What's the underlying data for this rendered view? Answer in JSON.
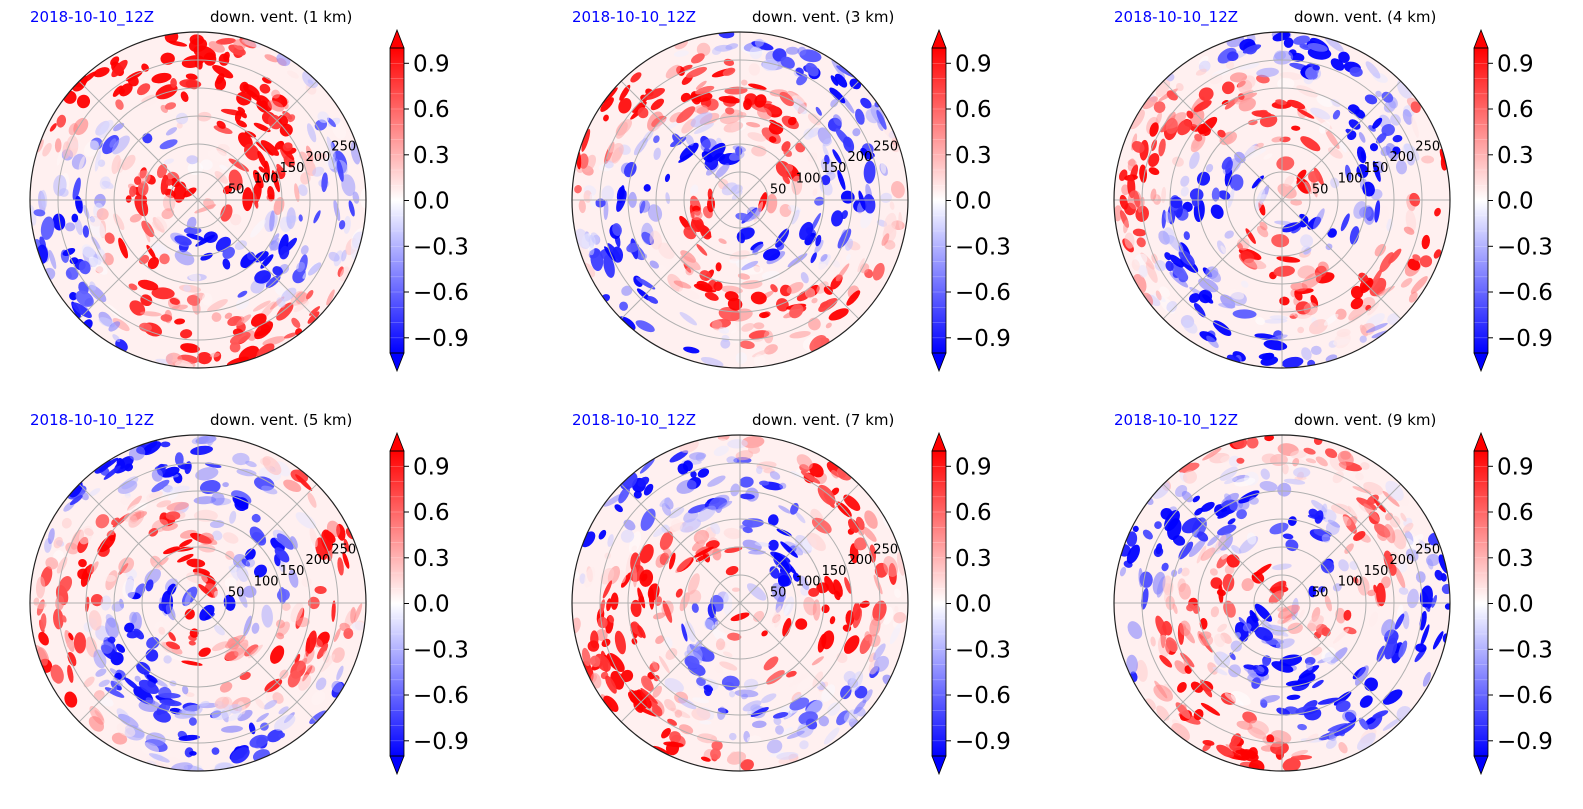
{
  "chart_data": [
    {
      "type": "heatmap",
      "date_label": "2018-10-10_12Z",
      "title": "down. vent. (1 km)",
      "projection": "polar",
      "radial_ticks": [
        "50",
        "100",
        "150",
        "200",
        "250"
      ],
      "colorbar": {
        "ticks": [
          "0.9",
          "0.6",
          "0.3",
          "0.0",
          "−0.3",
          "−0.6",
          "−0.9"
        ],
        "range": [
          -1,
          1
        ],
        "extend": "both",
        "cmap": "bwr"
      }
    },
    {
      "type": "heatmap",
      "date_label": "2018-10-10_12Z",
      "title": "down. vent. (3 km)",
      "projection": "polar",
      "radial_ticks": [
        "50",
        "100",
        "150",
        "200",
        "250"
      ],
      "colorbar": {
        "ticks": [
          "0.9",
          "0.6",
          "0.3",
          "0.0",
          "−0.3",
          "−0.6",
          "−0.9"
        ],
        "range": [
          -1,
          1
        ],
        "extend": "both",
        "cmap": "bwr"
      }
    },
    {
      "type": "heatmap",
      "date_label": "2018-10-10_12Z",
      "title": "down. vent. (4 km)",
      "projection": "polar",
      "radial_ticks": [
        "50",
        "100",
        "150",
        "200",
        "250"
      ],
      "colorbar": {
        "ticks": [
          "0.9",
          "0.6",
          "0.3",
          "0.0",
          "−0.3",
          "−0.6",
          "−0.9"
        ],
        "range": [
          -1,
          1
        ],
        "extend": "both",
        "cmap": "bwr"
      }
    },
    {
      "type": "heatmap",
      "date_label": "2018-10-10_12Z",
      "title": "down. vent. (5 km)",
      "projection": "polar",
      "radial_ticks": [
        "50",
        "100",
        "150",
        "200",
        "250"
      ],
      "colorbar": {
        "ticks": [
          "0.9",
          "0.6",
          "0.3",
          "0.0",
          "−0.3",
          "−0.6",
          "−0.9"
        ],
        "range": [
          -1,
          1
        ],
        "extend": "both",
        "cmap": "bwr"
      }
    },
    {
      "type": "heatmap",
      "date_label": "2018-10-10_12Z",
      "title": "down. vent. (7 km)",
      "projection": "polar",
      "radial_ticks": [
        "50",
        "100",
        "150",
        "200",
        "250"
      ],
      "colorbar": {
        "ticks": [
          "0.9",
          "0.6",
          "0.3",
          "0.0",
          "−0.3",
          "−0.6",
          "−0.9"
        ],
        "range": [
          -1,
          1
        ],
        "extend": "both",
        "cmap": "bwr"
      }
    },
    {
      "type": "heatmap",
      "date_label": "2018-10-10_12Z",
      "title": "down. vent. (9 km)",
      "projection": "polar",
      "radial_ticks": [
        "50",
        "100",
        "150",
        "200",
        "250"
      ],
      "colorbar": {
        "ticks": [
          "0.9",
          "0.6",
          "0.3",
          "0.0",
          "−0.3",
          "−0.6",
          "−0.9"
        ],
        "range": [
          -1,
          1
        ],
        "extend": "both",
        "cmap": "bwr"
      }
    }
  ],
  "colors": {
    "positive": "#ff0000",
    "negative": "#0000ff",
    "neutral": "#ffffff",
    "grid": "#b0b0b0",
    "date_label": "#0000ff"
  }
}
